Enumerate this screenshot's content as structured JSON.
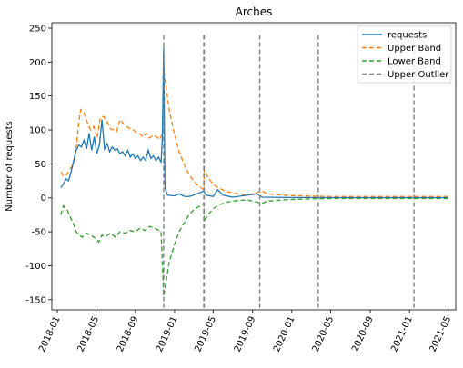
{
  "chart_data": {
    "type": "line",
    "title": "Arches",
    "xlabel": "",
    "ylabel": "Number of requests",
    "xlim": [
      "2017-12-15",
      "2021-05-25"
    ],
    "ylim": [
      -165,
      258
    ],
    "xticks": [
      "2018-01",
      "2018-05",
      "2018-09",
      "2019-01",
      "2019-05",
      "2019-09",
      "2020-01",
      "2020-05",
      "2020-09",
      "2021-01",
      "2021-05"
    ],
    "yticks": [
      -150,
      -100,
      -50,
      0,
      50,
      100,
      150,
      200,
      250
    ],
    "grid": false,
    "legend": {
      "position": "top-right",
      "entries": [
        "requests",
        "Upper Band",
        "Lower Band",
        "Upper Outlier"
      ]
    },
    "series": [
      {
        "name": "requests",
        "style": "solid",
        "color": "#1f77b4",
        "points": [
          [
            "2018-01-12",
            15
          ],
          [
            "2018-01-20",
            20
          ],
          [
            "2018-01-28",
            28
          ],
          [
            "2018-02-05",
            25
          ],
          [
            "2018-02-13",
            38
          ],
          [
            "2018-02-21",
            55
          ],
          [
            "2018-03-01",
            70
          ],
          [
            "2018-03-09",
            78
          ],
          [
            "2018-03-17",
            75
          ],
          [
            "2018-03-25",
            85
          ],
          [
            "2018-04-02",
            72
          ],
          [
            "2018-04-10",
            95
          ],
          [
            "2018-04-18",
            70
          ],
          [
            "2018-04-26",
            90
          ],
          [
            "2018-05-04",
            65
          ],
          [
            "2018-05-12",
            78
          ],
          [
            "2018-05-20",
            115
          ],
          [
            "2018-05-28",
            72
          ],
          [
            "2018-06-05",
            80
          ],
          [
            "2018-06-13",
            68
          ],
          [
            "2018-06-21",
            75
          ],
          [
            "2018-06-29",
            70
          ],
          [
            "2018-07-07",
            72
          ],
          [
            "2018-07-15",
            65
          ],
          [
            "2018-07-23",
            68
          ],
          [
            "2018-07-31",
            62
          ],
          [
            "2018-08-08",
            70
          ],
          [
            "2018-08-16",
            60
          ],
          [
            "2018-08-24",
            65
          ],
          [
            "2018-09-01",
            58
          ],
          [
            "2018-09-09",
            62
          ],
          [
            "2018-09-17",
            55
          ],
          [
            "2018-09-25",
            60
          ],
          [
            "2018-10-03",
            55
          ],
          [
            "2018-10-11",
            70
          ],
          [
            "2018-10-19",
            58
          ],
          [
            "2018-10-27",
            62
          ],
          [
            "2018-11-04",
            55
          ],
          [
            "2018-11-12",
            60
          ],
          [
            "2018-11-20",
            52
          ],
          [
            "2018-11-24",
            90
          ],
          [
            "2018-11-28",
            222
          ],
          [
            "2018-12-02",
            15
          ],
          [
            "2018-12-10",
            4
          ],
          [
            "2019-01-01",
            3
          ],
          [
            "2019-01-15",
            6
          ],
          [
            "2019-02-01",
            2
          ],
          [
            "2019-02-15",
            2
          ],
          [
            "2019-03-01",
            4
          ],
          [
            "2019-04-01",
            10
          ],
          [
            "2019-04-10",
            4
          ],
          [
            "2019-05-01",
            2
          ],
          [
            "2019-05-15",
            12
          ],
          [
            "2019-06-01",
            4
          ],
          [
            "2019-07-01",
            1
          ],
          [
            "2019-09-15",
            6
          ],
          [
            "2019-10-01",
            1
          ],
          [
            "2020-01-01",
            0.5
          ],
          [
            "2020-06-01",
            0.3
          ],
          [
            "2021-01-01",
            0.3
          ],
          [
            "2021-05-01",
            0.3
          ]
        ]
      },
      {
        "name": "Upper Band",
        "style": "dashed",
        "color": "#ff7f0e",
        "points": [
          [
            "2018-01-12",
            38
          ],
          [
            "2018-01-20",
            32
          ],
          [
            "2018-02-01",
            35
          ],
          [
            "2018-02-10",
            42
          ],
          [
            "2018-02-20",
            50
          ],
          [
            "2018-03-01",
            75
          ],
          [
            "2018-03-10",
            115
          ],
          [
            "2018-03-15",
            130
          ],
          [
            "2018-03-25",
            125
          ],
          [
            "2018-04-05",
            110
          ],
          [
            "2018-04-15",
            100
          ],
          [
            "2018-04-25",
            105
          ],
          [
            "2018-05-05",
            88
          ],
          [
            "2018-05-15",
            118
          ],
          [
            "2018-05-25",
            120
          ],
          [
            "2018-06-05",
            112
          ],
          [
            "2018-06-15",
            102
          ],
          [
            "2018-06-25",
            100
          ],
          [
            "2018-07-05",
            98
          ],
          [
            "2018-07-15",
            115
          ],
          [
            "2018-07-25",
            110
          ],
          [
            "2018-08-05",
            105
          ],
          [
            "2018-08-15",
            102
          ],
          [
            "2018-08-25",
            100
          ],
          [
            "2018-09-05",
            96
          ],
          [
            "2018-09-15",
            94
          ],
          [
            "2018-09-25",
            90
          ],
          [
            "2018-10-05",
            95
          ],
          [
            "2018-10-15",
            88
          ],
          [
            "2018-10-25",
            92
          ],
          [
            "2018-11-05",
            90
          ],
          [
            "2018-11-15",
            86
          ],
          [
            "2018-11-25",
            95
          ],
          [
            "2018-11-28",
            190
          ],
          [
            "2018-12-05",
            165
          ],
          [
            "2018-12-15",
            130
          ],
          [
            "2018-12-31",
            95
          ],
          [
            "2019-01-15",
            68
          ],
          [
            "2019-02-01",
            48
          ],
          [
            "2019-02-15",
            34
          ],
          [
            "2019-03-01",
            25
          ],
          [
            "2019-03-15",
            18
          ],
          [
            "2019-04-02",
            12
          ],
          [
            "2019-04-03",
            42
          ],
          [
            "2019-04-15",
            30
          ],
          [
            "2019-05-01",
            20
          ],
          [
            "2019-05-20",
            14
          ],
          [
            "2019-06-15",
            9
          ],
          [
            "2019-07-15",
            6
          ],
          [
            "2019-08-15",
            4
          ],
          [
            "2019-10-01",
            10
          ],
          [
            "2019-10-15",
            6
          ],
          [
            "2019-12-01",
            4
          ],
          [
            "2020-01-15",
            3
          ],
          [
            "2020-05-01",
            2
          ],
          [
            "2020-09-01",
            2
          ],
          [
            "2021-01-01",
            2
          ],
          [
            "2021-05-01",
            2
          ]
        ]
      },
      {
        "name": "Lower Band",
        "style": "dashed",
        "color": "#2ca02c",
        "points": [
          [
            "2018-01-12",
            -25
          ],
          [
            "2018-01-20",
            -12
          ],
          [
            "2018-02-01",
            -18
          ],
          [
            "2018-02-10",
            -28
          ],
          [
            "2018-02-20",
            -38
          ],
          [
            "2018-03-01",
            -50
          ],
          [
            "2018-03-10",
            -55
          ],
          [
            "2018-03-20",
            -58
          ],
          [
            "2018-04-01",
            -52
          ],
          [
            "2018-04-15",
            -55
          ],
          [
            "2018-05-01",
            -60
          ],
          [
            "2018-05-10",
            -65
          ],
          [
            "2018-05-20",
            -55
          ],
          [
            "2018-06-01",
            -57
          ],
          [
            "2018-06-15",
            -52
          ],
          [
            "2018-07-01",
            -58
          ],
          [
            "2018-07-15",
            -50
          ],
          [
            "2018-08-01",
            -52
          ],
          [
            "2018-08-15",
            -48
          ],
          [
            "2018-09-01",
            -50
          ],
          [
            "2018-09-15",
            -45
          ],
          [
            "2018-10-01",
            -48
          ],
          [
            "2018-10-15",
            -42
          ],
          [
            "2018-11-01",
            -45
          ],
          [
            "2018-11-20",
            -50
          ],
          [
            "2018-11-28",
            -145
          ],
          [
            "2018-12-05",
            -125
          ],
          [
            "2018-12-15",
            -95
          ],
          [
            "2018-12-31",
            -70
          ],
          [
            "2019-01-15",
            -50
          ],
          [
            "2019-02-01",
            -36
          ],
          [
            "2019-02-15",
            -25
          ],
          [
            "2019-03-01",
            -18
          ],
          [
            "2019-03-20",
            -12
          ],
          [
            "2019-04-02",
            -8
          ],
          [
            "2019-04-03",
            -35
          ],
          [
            "2019-04-15",
            -25
          ],
          [
            "2019-05-01",
            -16
          ],
          [
            "2019-05-20",
            -10
          ],
          [
            "2019-06-15",
            -6
          ],
          [
            "2019-07-15",
            -4
          ],
          [
            "2019-08-15",
            -3
          ],
          [
            "2019-10-01",
            -8
          ],
          [
            "2019-10-15",
            -5
          ],
          [
            "2019-12-01",
            -3
          ],
          [
            "2020-01-15",
            -2
          ],
          [
            "2020-05-01",
            -1
          ],
          [
            "2020-09-01",
            -1
          ],
          [
            "2021-01-01",
            -1
          ],
          [
            "2021-05-01",
            -1
          ]
        ]
      }
    ],
    "upper_outliers": {
      "name": "Upper Outlier",
      "style": "dashed",
      "color": "#7f7f7f",
      "dates": [
        "2018-11-28",
        "2019-04-02",
        "2019-04-03",
        "2019-09-23",
        "2020-03-23",
        "2021-01-15"
      ]
    }
  }
}
